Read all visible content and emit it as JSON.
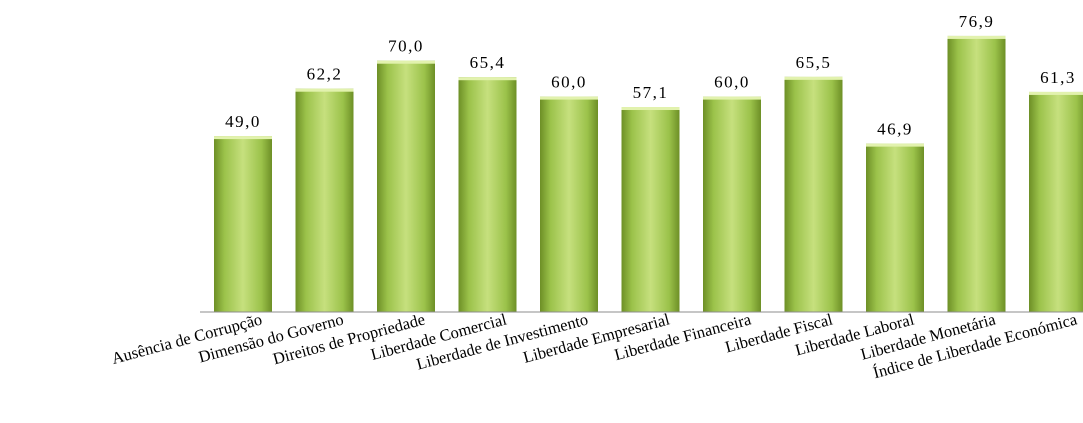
{
  "chart_data": {
    "type": "bar",
    "categories": [
      "Ausência de Corrupção",
      "Dimensão do Governo",
      "Direitos de Propriedade",
      "Liberdade Comercial",
      "Liberdade de Investimento",
      "Liberdade Empresarial",
      "Liberdade Financeira",
      "Liberdade Fiscal",
      "Liberdade Laboral",
      "Liberdade Monetária",
      "Índice de Liberdade Económica"
    ],
    "values": [
      49.0,
      62.2,
      70.0,
      65.4,
      60.0,
      57.1,
      60.0,
      65.5,
      46.9,
      76.9,
      61.3
    ],
    "value_labels": [
      "49,0",
      "62,2",
      "70,0",
      "65,4",
      "60,0",
      "57,1",
      "60,0",
      "65,5",
      "46,9",
      "76,9",
      "61,3"
    ],
    "title": "",
    "xlabel": "",
    "ylabel": "",
    "ylim": [
      0,
      78
    ],
    "grid": false,
    "legend": "none",
    "colors": {
      "bar_light": "#c6e07e",
      "bar_mid": "#9bc24a",
      "bar_dark": "#6d8f26",
      "bar_top": "#e2f2ae",
      "axis": "#8c8c8c"
    }
  }
}
